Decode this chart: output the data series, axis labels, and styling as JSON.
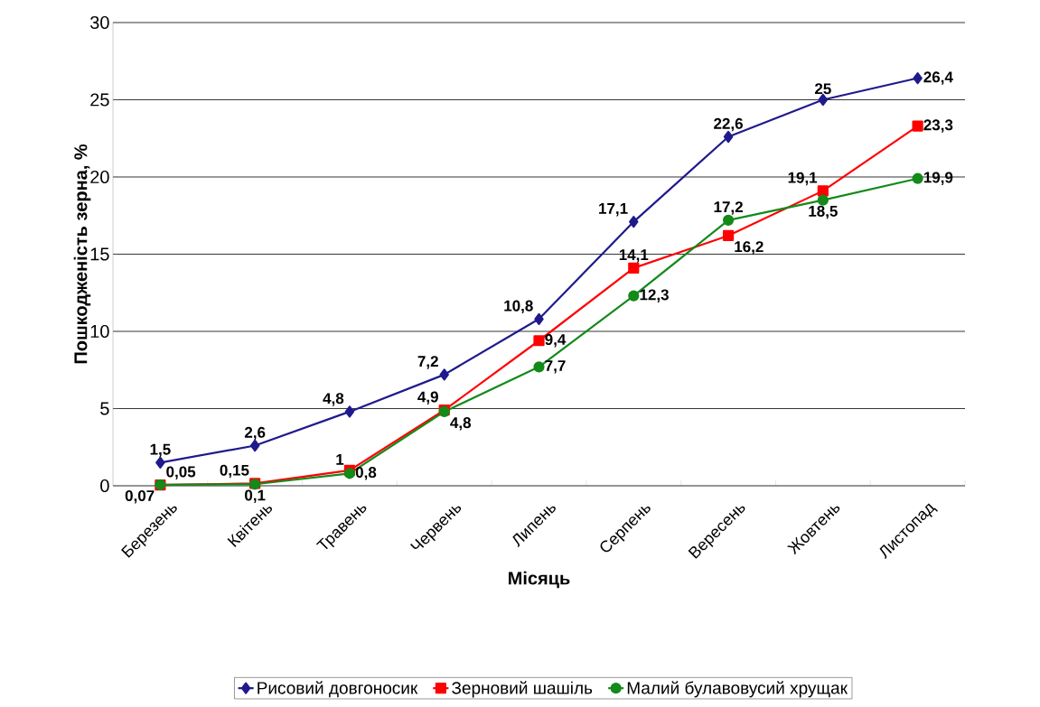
{
  "chart_data": {
    "type": "line",
    "xlabel": "Місяць",
    "ylabel": "Пошкодженість зерна, %",
    "categories": [
      "Березень",
      "Квітень",
      "Травень",
      "Червень",
      "Липень",
      "Серпень",
      "Вересень",
      "Жовтень",
      "Листопад"
    ],
    "ylim": [
      0,
      30
    ],
    "yticks": [
      0,
      5,
      10,
      15,
      20,
      25,
      30
    ],
    "grid": "y",
    "legend": "bottom",
    "series": [
      {
        "name": "Рисовий довгоносик",
        "color": "#1f1a8c",
        "marker": "diamond",
        "values": [
          1.5,
          2.6,
          4.8,
          7.2,
          10.8,
          17.1,
          22.6,
          25,
          26.4
        ],
        "value_labels": [
          "1,5",
          "2,6",
          "4,8",
          "7,2",
          "10,8",
          "17,1",
          "22,6",
          "25",
          "26,4"
        ]
      },
      {
        "name": "Зерновий шашіль",
        "color": "#ff0000",
        "marker": "square",
        "values": [
          0.05,
          0.15,
          1,
          4.9,
          9.4,
          14.1,
          16.2,
          19.1,
          23.3
        ],
        "value_labels": [
          "0,05",
          "0,15",
          "1",
          "4,9",
          "9,4",
          "14,1",
          "16,2",
          "19,1",
          "23,3"
        ]
      },
      {
        "name": "Малий булавовусий хрущак",
        "color": "#138a1a",
        "marker": "circle",
        "values": [
          0.07,
          0.1,
          0.8,
          4.8,
          7.7,
          12.3,
          17.2,
          18.5,
          19.9
        ],
        "value_labels": [
          "0,07",
          "0,1",
          "0,8",
          "4,8",
          "7,7",
          "12,3",
          "17,2",
          "18,5",
          "19,9"
        ]
      }
    ]
  }
}
